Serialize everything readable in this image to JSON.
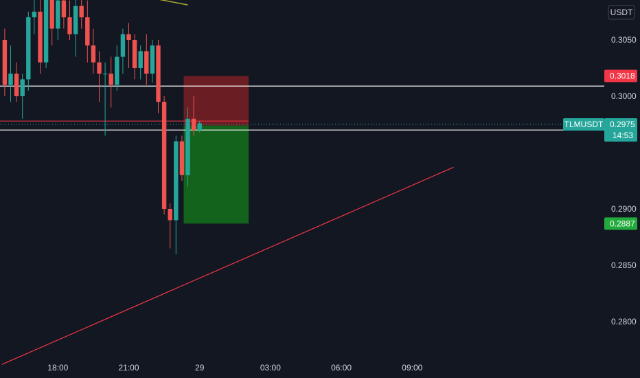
{
  "chart_data": {
    "type": "candlestick",
    "symbol": "TLMUSDT",
    "currency": "USDT",
    "countdown": "14:53",
    "last_price": 0.2975,
    "y_axis": {
      "range": [
        0.276,
        0.309
      ],
      "ticks": [
        0.305,
        0.3,
        0.29,
        0.285,
        0.28
      ],
      "tick_labels": [
        "0.3050",
        "0.3000",
        "0.2900",
        "0.2850",
        "0.2800"
      ]
    },
    "x_axis": {
      "ticks": [
        {
          "t": 8,
          "label": "18:00"
        },
        {
          "t": 20,
          "label": "21:00"
        },
        {
          "t": 32,
          "label": "29"
        },
        {
          "t": 44,
          "label": "03:00"
        },
        {
          "t": 56,
          "label": "06:00"
        },
        {
          "t": 68,
          "label": "09:00"
        }
      ]
    },
    "price_tags": [
      {
        "value": 0.3018,
        "label": "0.3018",
        "color": "#f23645"
      },
      {
        "value": 0.2972,
        "label": "0.2972",
        "color": "#000000"
      },
      {
        "value": 0.2887,
        "label": "0.2887",
        "color": "#22ab3c"
      }
    ],
    "horizontal_lines": [
      {
        "value": 0.3009,
        "color": "#ffffff"
      },
      {
        "value": 0.297,
        "color": "#ffffff"
      },
      {
        "value": 0.2978,
        "color": "#f23645"
      }
    ],
    "position": {
      "t_start": 29.3,
      "t_end": 40.3,
      "stop": 0.3018,
      "entry": 0.2974,
      "target": 0.2887,
      "loss_color": "#7a1e23",
      "profit_color": "#156b1d"
    },
    "trendline": {
      "t1": -1.5,
      "v1": 0.2762,
      "t2": 75,
      "v2": 0.2937,
      "color": "#f23645"
    },
    "moving_average": {
      "color": "#a8a832",
      "points": [
        [
          4,
          0.3094
        ],
        [
          8,
          0.3094
        ],
        [
          12,
          0.3093
        ],
        [
          16,
          0.3091
        ],
        [
          20,
          0.309
        ],
        [
          24,
          0.3087
        ],
        [
          27,
          0.3084
        ],
        [
          30,
          0.3081
        ]
      ]
    },
    "candles": [
      {
        "t": -1,
        "o": 0.305,
        "h": 0.306,
        "l": 0.3,
        "c": 0.301
      },
      {
        "t": 0,
        "o": 0.301,
        "h": 0.3045,
        "l": 0.2995,
        "c": 0.302
      },
      {
        "t": 1,
        "o": 0.302,
        "h": 0.303,
        "l": 0.2995,
        "c": 0.3
      },
      {
        "t": 2,
        "o": 0.3,
        "h": 0.302,
        "l": 0.298,
        "c": 0.3015
      },
      {
        "t": 3,
        "o": 0.3015,
        "h": 0.3075,
        "l": 0.3005,
        "c": 0.307
      },
      {
        "t": 4,
        "o": 0.307,
        "h": 0.3095,
        "l": 0.3055,
        "c": 0.3075
      },
      {
        "t": 5,
        "o": 0.3075,
        "h": 0.309,
        "l": 0.302,
        "c": 0.303
      },
      {
        "t": 6,
        "o": 0.303,
        "h": 0.31,
        "l": 0.3025,
        "c": 0.309
      },
      {
        "t": 7,
        "o": 0.309,
        "h": 0.31,
        "l": 0.3045,
        "c": 0.306
      },
      {
        "t": 8,
        "o": 0.306,
        "h": 0.3095,
        "l": 0.305,
        "c": 0.3085
      },
      {
        "t": 9,
        "o": 0.3085,
        "h": 0.3095,
        "l": 0.306,
        "c": 0.307
      },
      {
        "t": 10,
        "o": 0.307,
        "h": 0.3085,
        "l": 0.305,
        "c": 0.3055
      },
      {
        "t": 11,
        "o": 0.3055,
        "h": 0.309,
        "l": 0.3035,
        "c": 0.308
      },
      {
        "t": 12,
        "o": 0.308,
        "h": 0.3095,
        "l": 0.306,
        "c": 0.307
      },
      {
        "t": 13,
        "o": 0.307,
        "h": 0.3085,
        "l": 0.303,
        "c": 0.3045
      },
      {
        "t": 14,
        "o": 0.3045,
        "h": 0.306,
        "l": 0.302,
        "c": 0.303
      },
      {
        "t": 15,
        "o": 0.303,
        "h": 0.304,
        "l": 0.2995,
        "c": 0.302
      },
      {
        "t": 16,
        "o": 0.302,
        "h": 0.303,
        "l": 0.2965,
        "c": 0.302
      },
      {
        "t": 17,
        "o": 0.302,
        "h": 0.3035,
        "l": 0.299,
        "c": 0.301
      },
      {
        "t": 18,
        "o": 0.301,
        "h": 0.3045,
        "l": 0.3005,
        "c": 0.3035
      },
      {
        "t": 19,
        "o": 0.3035,
        "h": 0.306,
        "l": 0.302,
        "c": 0.3055
      },
      {
        "t": 20,
        "o": 0.3055,
        "h": 0.3065,
        "l": 0.3025,
        "c": 0.305
      },
      {
        "t": 21,
        "o": 0.305,
        "h": 0.3055,
        "l": 0.3015,
        "c": 0.3025
      },
      {
        "t": 22,
        "o": 0.3025,
        "h": 0.3045,
        "l": 0.3015,
        "c": 0.304
      },
      {
        "t": 23,
        "o": 0.304,
        "h": 0.3055,
        "l": 0.301,
        "c": 0.302
      },
      {
        "t": 24,
        "o": 0.302,
        "h": 0.305,
        "l": 0.3012,
        "c": 0.3045
      },
      {
        "t": 25,
        "o": 0.3045,
        "h": 0.305,
        "l": 0.2985,
        "c": 0.2995
      },
      {
        "t": 26,
        "o": 0.2995,
        "h": 0.3,
        "l": 0.2895,
        "c": 0.29
      },
      {
        "t": 27,
        "o": 0.29,
        "h": 0.2905,
        "l": 0.2865,
        "c": 0.289
      },
      {
        "t": 28,
        "o": 0.289,
        "h": 0.2965,
        "l": 0.286,
        "c": 0.296
      },
      {
        "t": 29,
        "o": 0.296,
        "h": 0.2965,
        "l": 0.2925,
        "c": 0.293
      },
      {
        "t": 30,
        "o": 0.293,
        "h": 0.299,
        "l": 0.292,
        "c": 0.298
      },
      {
        "t": 31,
        "o": 0.298,
        "h": 0.3,
        "l": 0.2965,
        "c": 0.297
      },
      {
        "t": 32,
        "o": 0.297,
        "h": 0.2978,
        "l": 0.2968,
        "c": 0.2976
      }
    ]
  }
}
